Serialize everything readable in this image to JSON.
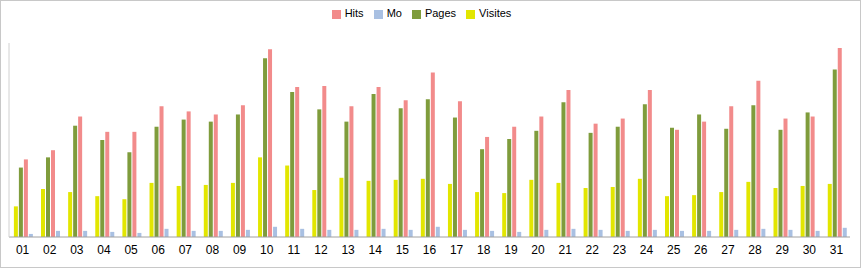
{
  "chart_data": {
    "type": "bar",
    "categories": [
      "01",
      "02",
      "03",
      "04",
      "05",
      "06",
      "07",
      "08",
      "09",
      "10",
      "11",
      "12",
      "13",
      "14",
      "15",
      "16",
      "17",
      "18",
      "19",
      "20",
      "21",
      "22",
      "23",
      "24",
      "25",
      "26",
      "27",
      "28",
      "29",
      "30",
      "31"
    ],
    "series": [
      {
        "name": "Visites",
        "color": "#e2e600",
        "values": [
          30,
          47,
          44,
          40,
          37,
          53,
          50,
          51,
          53,
          78,
          70,
          46,
          58,
          55,
          56,
          57,
          52,
          44,
          43,
          56,
          53,
          48,
          49,
          57,
          40,
          41,
          44,
          54,
          48,
          50,
          52
        ]
      },
      {
        "name": "Pages",
        "color": "#7f9c3c",
        "values": [
          68,
          78,
          109,
          95,
          83,
          108,
          115,
          113,
          120,
          175,
          142,
          125,
          113,
          140,
          126,
          135,
          117,
          86,
          96,
          104,
          132,
          102,
          108,
          130,
          107,
          120,
          106,
          129,
          105,
          122,
          164
        ]
      },
      {
        "name": "Hits",
        "color": "#f28b8b",
        "values": [
          76,
          85,
          118,
          103,
          103,
          128,
          123,
          120,
          129,
          184,
          147,
          148,
          128,
          147,
          134,
          161,
          133,
          98,
          108,
          118,
          144,
          111,
          116,
          144,
          105,
          113,
          128,
          153,
          116,
          118,
          185
        ]
      },
      {
        "name": "Mo",
        "color": "#a9c0e2",
        "values": [
          3,
          6,
          6,
          5,
          4,
          8,
          6,
          6,
          7,
          10,
          8,
          7,
          7,
          8,
          7,
          10,
          7,
          6,
          5,
          7,
          8,
          7,
          6,
          7,
          6,
          6,
          7,
          8,
          7,
          6,
          9
        ]
      }
    ],
    "ylim": [
      0,
      190
    ],
    "legend": "top",
    "tick_labels": "x",
    "grid": false
  }
}
